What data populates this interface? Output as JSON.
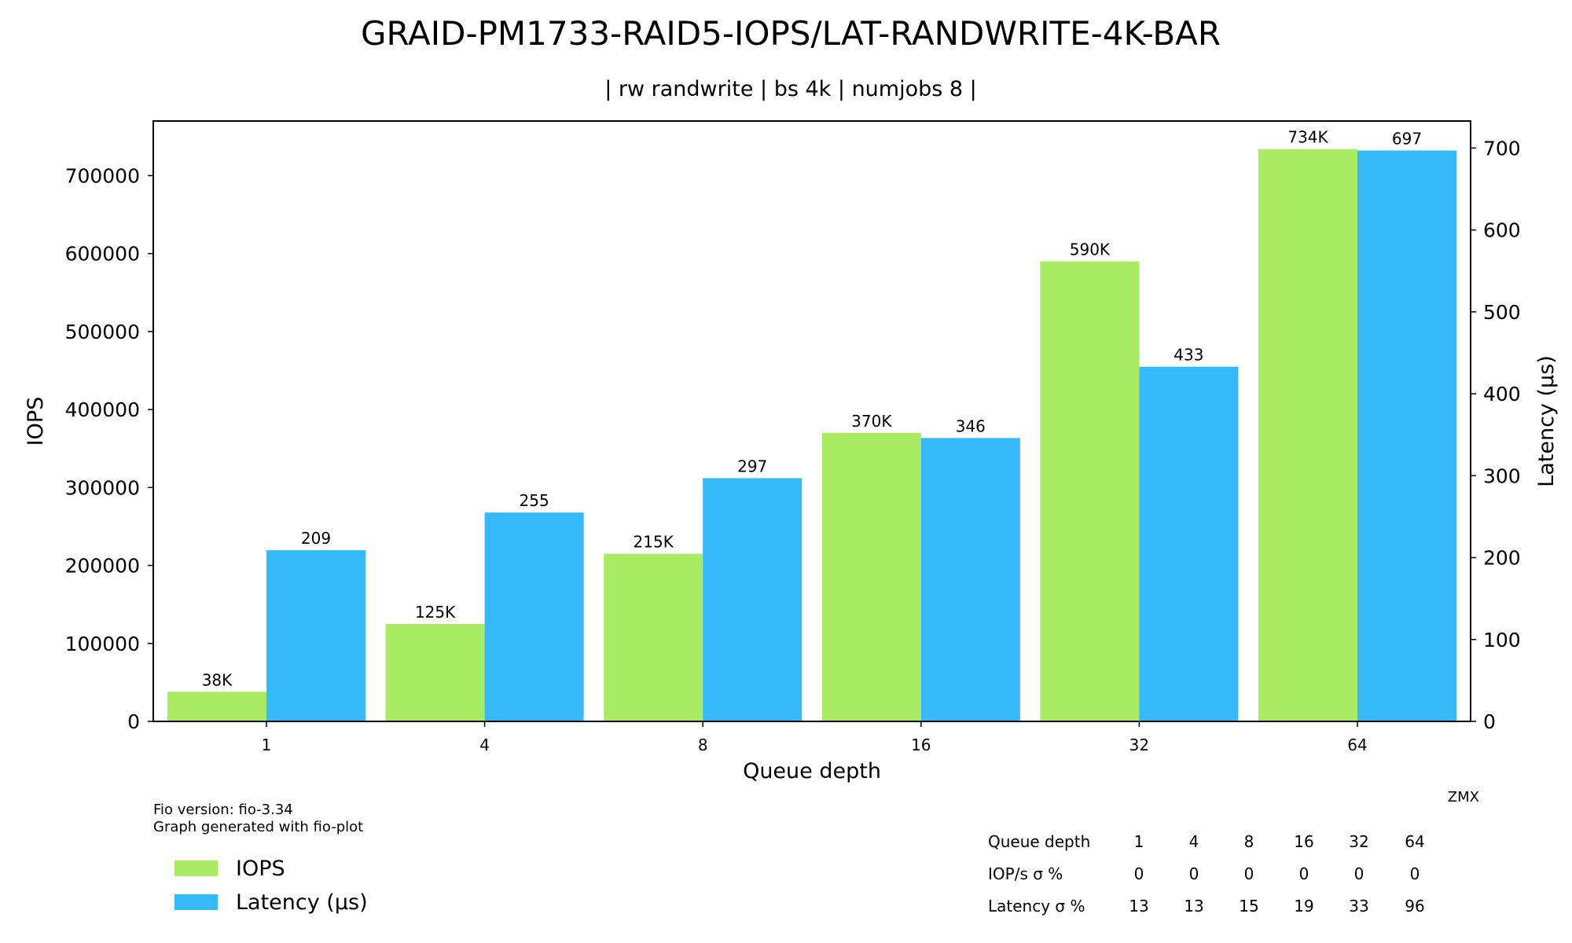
{
  "chart_data": {
    "type": "bar",
    "title": "GRAID-PM1733-RAID5-IOPS/LAT-RANDWRITE-4K-BAR",
    "subtitle": "| rw randwrite | bs 4k | numjobs 8 |",
    "xlabel": "Queue depth",
    "ylabel": "IOPS",
    "y2label": "Latency (µs)",
    "ylim": [
      0,
      770000
    ],
    "y2lim": [
      0,
      733
    ],
    "yticks": [
      "0",
      "100000",
      "200000",
      "300000",
      "400000",
      "500000",
      "600000",
      "700000"
    ],
    "y2ticks": [
      "0",
      "100",
      "200",
      "300",
      "400",
      "500",
      "600",
      "700"
    ],
    "categories": [
      "1",
      "4",
      "8",
      "16",
      "32",
      "64"
    ],
    "series": [
      {
        "name": "IOPS",
        "axis": "left",
        "color": "#a9ec63",
        "values": [
          38000,
          125000,
          215000,
          370000,
          590000,
          734000
        ],
        "labels": [
          "38K",
          "125K",
          "215K",
          "370K",
          "590K",
          "734K"
        ]
      },
      {
        "name": "Latency (µs)",
        "axis": "right",
        "color": "#35b9f8",
        "values": [
          209,
          255,
          297,
          346,
          433,
          697
        ],
        "labels": [
          "209",
          "255",
          "297",
          "346",
          "433",
          "697"
        ]
      }
    ],
    "legend": {
      "placement": "bottom-left"
    },
    "grid": false,
    "annotation_corner": "ZMX",
    "footnotes": [
      "Fio version: fio-3.34",
      "Graph generated with fio-plot"
    ],
    "table": {
      "rows": [
        [
          "Queue depth",
          "1",
          "4",
          "8",
          "16",
          "32",
          "64"
        ],
        [
          "IOP/s σ %",
          "0",
          "0",
          "0",
          "0",
          "0",
          "0"
        ],
        [
          "Latency σ %",
          "13",
          "13",
          "15",
          "19",
          "33",
          "96"
        ]
      ]
    }
  }
}
